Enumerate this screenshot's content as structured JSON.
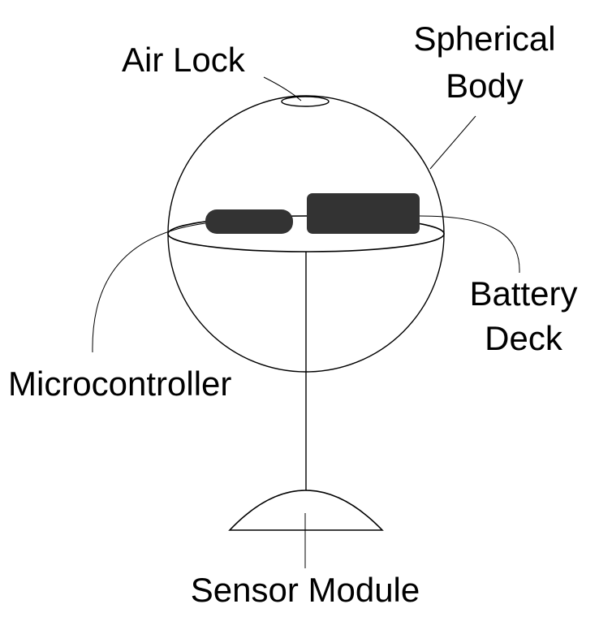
{
  "labels": {
    "air_lock": "Air Lock",
    "spherical_body_line1": "Spherical",
    "spherical_body_line2": "Body",
    "battery_deck_line1": "Battery",
    "battery_deck_line2": "Deck",
    "microcontroller": "Microcontroller",
    "sensor_module": "Sensor Module"
  },
  "colors": {
    "component_fill": "#333333",
    "line": "#000000",
    "background": "#ffffff"
  }
}
